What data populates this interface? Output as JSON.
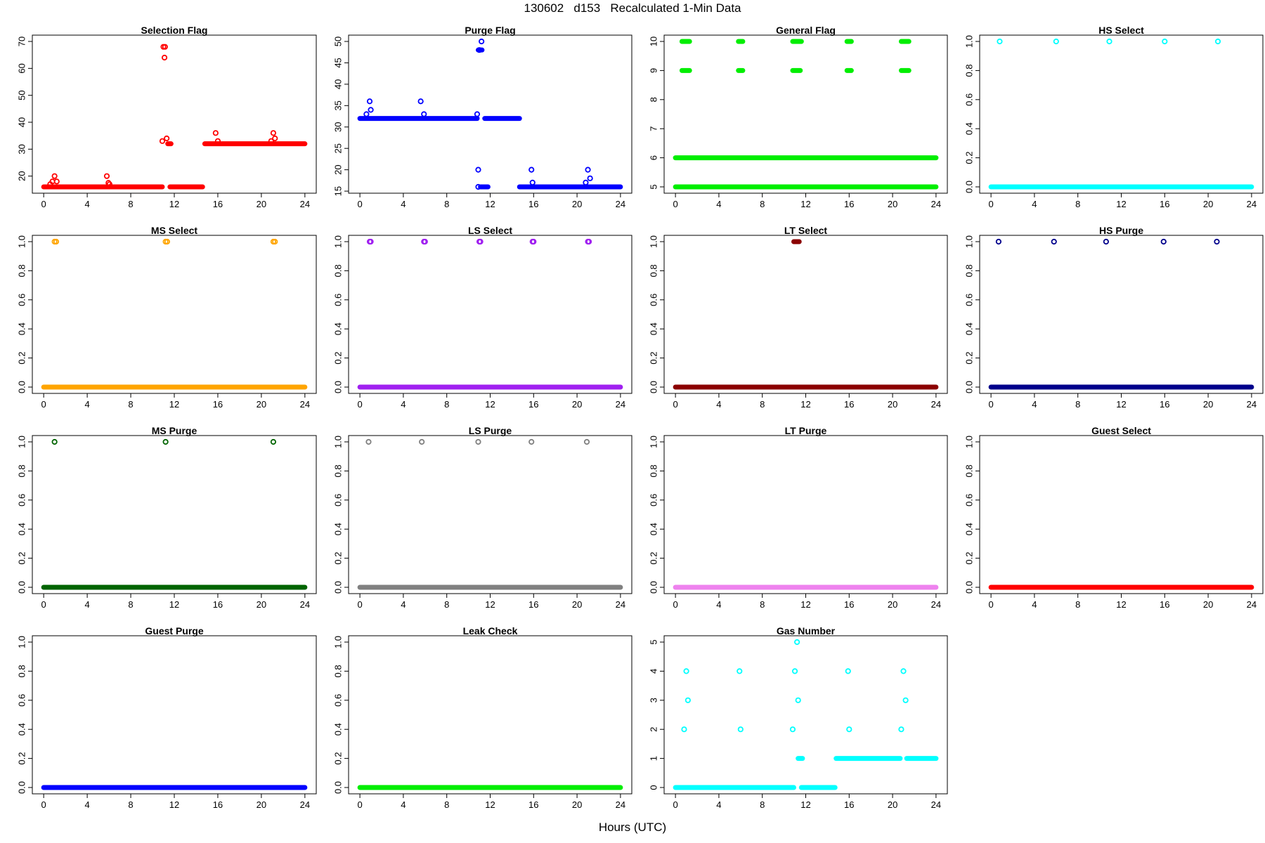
{
  "page": {
    "title": "130602   d153   Recalculated 1-Min Data",
    "xlabel": "Hours (UTC)"
  },
  "chart_data": [
    {
      "type": "scatter",
      "title": "Selection Flag",
      "color": "#ff0000",
      "xlim": [
        0,
        24
      ],
      "ylim": [
        16,
        70
      ],
      "xticks": [
        0,
        4,
        8,
        12,
        16,
        20,
        24
      ],
      "yticks": [
        20,
        30,
        40,
        50,
        60,
        70
      ],
      "ytick_labels": [
        "20",
        "30",
        "40",
        "50",
        "60",
        "70"
      ],
      "runs": [
        {
          "x0": 0,
          "x1": 10.9,
          "y": 16
        },
        {
          "x0": 11.6,
          "x1": 14.6,
          "y": 16
        },
        {
          "x0": 11.4,
          "x1": 11.7,
          "y": 32
        },
        {
          "x0": 14.8,
          "x1": 24,
          "y": 32
        }
      ],
      "points": [
        [
          0.6,
          17
        ],
        [
          0.8,
          18
        ],
        [
          1.0,
          20
        ],
        [
          1.2,
          18
        ],
        [
          5.8,
          20
        ],
        [
          5.95,
          17.5
        ],
        [
          6.05,
          17
        ],
        [
          10.9,
          33
        ],
        [
          11.0,
          68
        ],
        [
          11.15,
          68
        ],
        [
          11.1,
          64
        ],
        [
          11.3,
          34
        ],
        [
          15.8,
          36
        ],
        [
          16.0,
          33
        ],
        [
          20.9,
          33
        ],
        [
          21.1,
          36
        ],
        [
          21.25,
          34
        ]
      ]
    },
    {
      "type": "scatter",
      "title": "Purge Flag",
      "color": "#0000ff",
      "xlim": [
        0,
        24
      ],
      "ylim": [
        16,
        50
      ],
      "xticks": [
        0,
        4,
        8,
        12,
        16,
        20,
        24
      ],
      "yticks": [
        15,
        20,
        25,
        30,
        35,
        40,
        45,
        50
      ],
      "ytick_labels": [
        "15",
        "20",
        "25",
        "30",
        "35",
        "40",
        "45",
        "50"
      ],
      "runs": [
        {
          "x0": 0,
          "x1": 10.8,
          "y": 32
        },
        {
          "x0": 11.5,
          "x1": 14.7,
          "y": 32
        },
        {
          "x0": 11.1,
          "x1": 11.8,
          "y": 16
        },
        {
          "x0": 14.7,
          "x1": 24,
          "y": 16
        },
        {
          "x0": 10.9,
          "x1": 11.25,
          "y": 48
        }
      ],
      "points": [
        [
          0.6,
          33
        ],
        [
          0.9,
          36
        ],
        [
          1.0,
          34
        ],
        [
          5.6,
          36
        ],
        [
          5.9,
          33
        ],
        [
          10.8,
          33
        ],
        [
          10.9,
          20
        ],
        [
          10.9,
          16
        ],
        [
          11.2,
          50
        ],
        [
          11.0,
          48
        ],
        [
          15.8,
          20
        ],
        [
          15.9,
          17
        ],
        [
          20.8,
          17
        ],
        [
          21.0,
          20
        ],
        [
          21.2,
          18
        ]
      ]
    },
    {
      "type": "scatter",
      "title": "General Flag",
      "color": "#00ee00",
      "xlim": [
        0,
        24
      ],
      "ylim": [
        5,
        10
      ],
      "xticks": [
        0,
        4,
        8,
        12,
        16,
        20,
        24
      ],
      "yticks": [
        5,
        6,
        7,
        8,
        9,
        10
      ],
      "ytick_labels": [
        "5",
        "6",
        "7",
        "8",
        "9",
        "10"
      ],
      "runs": [
        {
          "x0": 0,
          "x1": 24,
          "y": 5
        },
        {
          "x0": 0,
          "x1": 24,
          "y": 6
        },
        {
          "x0": 0.6,
          "x1": 1.3,
          "y": 10
        },
        {
          "x0": 5.8,
          "x1": 6.2,
          "y": 10
        },
        {
          "x0": 10.8,
          "x1": 11.6,
          "y": 10
        },
        {
          "x0": 15.8,
          "x1": 16.2,
          "y": 10
        },
        {
          "x0": 20.8,
          "x1": 21.5,
          "y": 10
        },
        {
          "x0": 0.6,
          "x1": 1.3,
          "y": 9
        },
        {
          "x0": 5.8,
          "x1": 6.2,
          "y": 9
        },
        {
          "x0": 10.8,
          "x1": 11.5,
          "y": 9
        },
        {
          "x0": 15.8,
          "x1": 16.2,
          "y": 9
        },
        {
          "x0": 20.8,
          "x1": 21.5,
          "y": 9
        }
      ],
      "points": []
    },
    {
      "type": "scatter",
      "title": "HS Select",
      "color": "#00ffff",
      "xlim": [
        0,
        24
      ],
      "ylim": [
        0,
        1
      ],
      "xticks": [
        0,
        4,
        8,
        12,
        16,
        20,
        24
      ],
      "yticks": [
        0,
        0.2,
        0.4,
        0.6,
        0.8,
        1.0
      ],
      "ytick_labels": [
        "0.0",
        "0.2",
        "0.4",
        "0.6",
        "0.8",
        "1.0"
      ],
      "runs": [
        {
          "x0": 0,
          "x1": 24,
          "y": 0
        }
      ],
      "points": [
        [
          0.8,
          1
        ],
        [
          6.0,
          1
        ],
        [
          10.9,
          1
        ],
        [
          16.0,
          1
        ],
        [
          20.9,
          1
        ]
      ]
    },
    {
      "type": "scatter",
      "title": "MS Select",
      "color": "#ffa500",
      "xlim": [
        0,
        24
      ],
      "ylim": [
        0,
        1
      ],
      "xticks": [
        0,
        4,
        8,
        12,
        16,
        20,
        24
      ],
      "yticks": [
        0,
        0.2,
        0.4,
        0.6,
        0.8,
        1.0
      ],
      "ytick_labels": [
        "0.0",
        "0.2",
        "0.4",
        "0.6",
        "0.8",
        "1.0"
      ],
      "runs": [
        {
          "x0": 0,
          "x1": 24,
          "y": 0
        }
      ],
      "points": [
        [
          1.0,
          1
        ],
        [
          1.15,
          1
        ],
        [
          11.2,
          1
        ],
        [
          11.35,
          1
        ],
        [
          21.1,
          1
        ],
        [
          21.25,
          1
        ]
      ]
    },
    {
      "type": "scatter",
      "title": "LS Select",
      "color": "#a020f0",
      "xlim": [
        0,
        24
      ],
      "ylim": [
        0,
        1
      ],
      "xticks": [
        0,
        4,
        8,
        12,
        16,
        20,
        24
      ],
      "yticks": [
        0,
        0.2,
        0.4,
        0.6,
        0.8,
        1.0
      ],
      "ytick_labels": [
        "0.0",
        "0.2",
        "0.4",
        "0.6",
        "0.8",
        "1.0"
      ],
      "runs": [
        {
          "x0": 0,
          "x1": 24,
          "y": 0
        }
      ],
      "points": [
        [
          0.9,
          1
        ],
        [
          1.0,
          1
        ],
        [
          5.9,
          1
        ],
        [
          6.0,
          1
        ],
        [
          11.0,
          1
        ],
        [
          11.1,
          1
        ],
        [
          15.9,
          1
        ],
        [
          16.0,
          1
        ],
        [
          21.0,
          1
        ],
        [
          21.1,
          1
        ]
      ]
    },
    {
      "type": "scatter",
      "title": "LT Select",
      "color": "#8b0000",
      "xlim": [
        0,
        24
      ],
      "ylim": [
        0,
        1
      ],
      "xticks": [
        0,
        4,
        8,
        12,
        16,
        20,
        24
      ],
      "yticks": [
        0,
        0.2,
        0.4,
        0.6,
        0.8,
        1.0
      ],
      "ytick_labels": [
        "0.0",
        "0.2",
        "0.4",
        "0.6",
        "0.8",
        "1.0"
      ],
      "runs": [
        {
          "x0": 0,
          "x1": 24,
          "y": 0
        },
        {
          "x0": 10.9,
          "x1": 11.4,
          "y": 1
        }
      ],
      "points": []
    },
    {
      "type": "scatter",
      "title": "HS Purge",
      "color": "#00008b",
      "xlim": [
        0,
        24
      ],
      "ylim": [
        0,
        1
      ],
      "xticks": [
        0,
        4,
        8,
        12,
        16,
        20,
        24
      ],
      "yticks": [
        0,
        0.2,
        0.4,
        0.6,
        0.8,
        1.0
      ],
      "ytick_labels": [
        "0.0",
        "0.2",
        "0.4",
        "0.6",
        "0.8",
        "1.0"
      ],
      "runs": [
        {
          "x0": 0,
          "x1": 24,
          "y": 0
        }
      ],
      "points": [
        [
          0.7,
          1
        ],
        [
          5.8,
          1
        ],
        [
          10.6,
          1
        ],
        [
          15.9,
          1
        ],
        [
          20.8,
          1
        ]
      ]
    },
    {
      "type": "scatter",
      "title": "MS Purge",
      "color": "#006400",
      "xlim": [
        0,
        24
      ],
      "ylim": [
        0,
        1
      ],
      "xticks": [
        0,
        4,
        8,
        12,
        16,
        20,
        24
      ],
      "yticks": [
        0,
        0.2,
        0.4,
        0.6,
        0.8,
        1.0
      ],
      "ytick_labels": [
        "0.0",
        "0.2",
        "0.4",
        "0.6",
        "0.8",
        "1.0"
      ],
      "runs": [
        {
          "x0": 0,
          "x1": 24,
          "y": 0
        }
      ],
      "points": [
        [
          1.0,
          1
        ],
        [
          11.2,
          1
        ],
        [
          21.1,
          1
        ]
      ]
    },
    {
      "type": "scatter",
      "title": "LS Purge",
      "color": "#808080",
      "xlim": [
        0,
        24
      ],
      "ylim": [
        0,
        1
      ],
      "xticks": [
        0,
        4,
        8,
        12,
        16,
        20,
        24
      ],
      "yticks": [
        0,
        0.2,
        0.4,
        0.6,
        0.8,
        1.0
      ],
      "ytick_labels": [
        "0.0",
        "0.2",
        "0.4",
        "0.6",
        "0.8",
        "1.0"
      ],
      "runs": [
        {
          "x0": 0,
          "x1": 24,
          "y": 0
        }
      ],
      "points": [
        [
          0.8,
          1
        ],
        [
          5.7,
          1
        ],
        [
          10.9,
          1
        ],
        [
          15.8,
          1
        ],
        [
          20.9,
          1
        ]
      ]
    },
    {
      "type": "scatter",
      "title": "LT Purge",
      "color": "#ee82ee",
      "xlim": [
        0,
        24
      ],
      "ylim": [
        0,
        1
      ],
      "xticks": [
        0,
        4,
        8,
        12,
        16,
        20,
        24
      ],
      "yticks": [
        0,
        0.2,
        0.4,
        0.6,
        0.8,
        1.0
      ],
      "ytick_labels": [
        "0.0",
        "0.2",
        "0.4",
        "0.6",
        "0.8",
        "1.0"
      ],
      "runs": [
        {
          "x0": 0,
          "x1": 24,
          "y": 0
        }
      ],
      "points": []
    },
    {
      "type": "scatter",
      "title": "Guest Select",
      "color": "#ff0000",
      "xlim": [
        0,
        24
      ],
      "ylim": [
        0,
        1
      ],
      "xticks": [
        0,
        4,
        8,
        12,
        16,
        20,
        24
      ],
      "yticks": [
        0,
        0.2,
        0.4,
        0.6,
        0.8,
        1.0
      ],
      "ytick_labels": [
        "0.0",
        "0.2",
        "0.4",
        "0.6",
        "0.8",
        "1.0"
      ],
      "runs": [
        {
          "x0": 0,
          "x1": 24,
          "y": 0
        }
      ],
      "points": []
    },
    {
      "type": "scatter",
      "title": "Guest Purge",
      "color": "#0000ff",
      "xlim": [
        0,
        24
      ],
      "ylim": [
        0,
        1
      ],
      "xticks": [
        0,
        4,
        8,
        12,
        16,
        20,
        24
      ],
      "yticks": [
        0,
        0.2,
        0.4,
        0.6,
        0.8,
        1.0
      ],
      "ytick_labels": [
        "0.0",
        "0.2",
        "0.4",
        "0.6",
        "0.8",
        "1.0"
      ],
      "runs": [
        {
          "x0": 0,
          "x1": 24,
          "y": 0
        }
      ],
      "points": []
    },
    {
      "type": "scatter",
      "title": "Leak Check",
      "color": "#00ee00",
      "xlim": [
        0,
        24
      ],
      "ylim": [
        0,
        1
      ],
      "xticks": [
        0,
        4,
        8,
        12,
        16,
        20,
        24
      ],
      "yticks": [
        0,
        0.2,
        0.4,
        0.6,
        0.8,
        1.0
      ],
      "ytick_labels": [
        "0.0",
        "0.2",
        "0.4",
        "0.6",
        "0.8",
        "1.0"
      ],
      "runs": [
        {
          "x0": 0,
          "x1": 24,
          "y": 0
        }
      ],
      "points": []
    },
    {
      "type": "scatter",
      "title": "Gas Number",
      "color": "#00ffff",
      "xlim": [
        0,
        24
      ],
      "ylim": [
        0,
        5
      ],
      "xticks": [
        0,
        4,
        8,
        12,
        16,
        20,
        24
      ],
      "yticks": [
        0,
        1,
        2,
        3,
        4,
        5
      ],
      "ytick_labels": [
        "0",
        "1",
        "2",
        "3",
        "4",
        "5"
      ],
      "runs": [
        {
          "x0": 0,
          "x1": 10.9,
          "y": 0
        },
        {
          "x0": 11.6,
          "x1": 14.7,
          "y": 0
        },
        {
          "x0": 11.3,
          "x1": 11.7,
          "y": 1
        },
        {
          "x0": 14.8,
          "x1": 20.7,
          "y": 1
        },
        {
          "x0": 21.3,
          "x1": 24,
          "y": 1
        }
      ],
      "points": [
        [
          0.8,
          2
        ],
        [
          1.0,
          4
        ],
        [
          1.15,
          3
        ],
        [
          5.9,
          4
        ],
        [
          6.0,
          2
        ],
        [
          10.8,
          2
        ],
        [
          11.0,
          4
        ],
        [
          11.2,
          5
        ],
        [
          11.3,
          3
        ],
        [
          15.9,
          4
        ],
        [
          16.0,
          2
        ],
        [
          20.8,
          2
        ],
        [
          21.0,
          4
        ],
        [
          21.2,
          3
        ]
      ]
    }
  ]
}
